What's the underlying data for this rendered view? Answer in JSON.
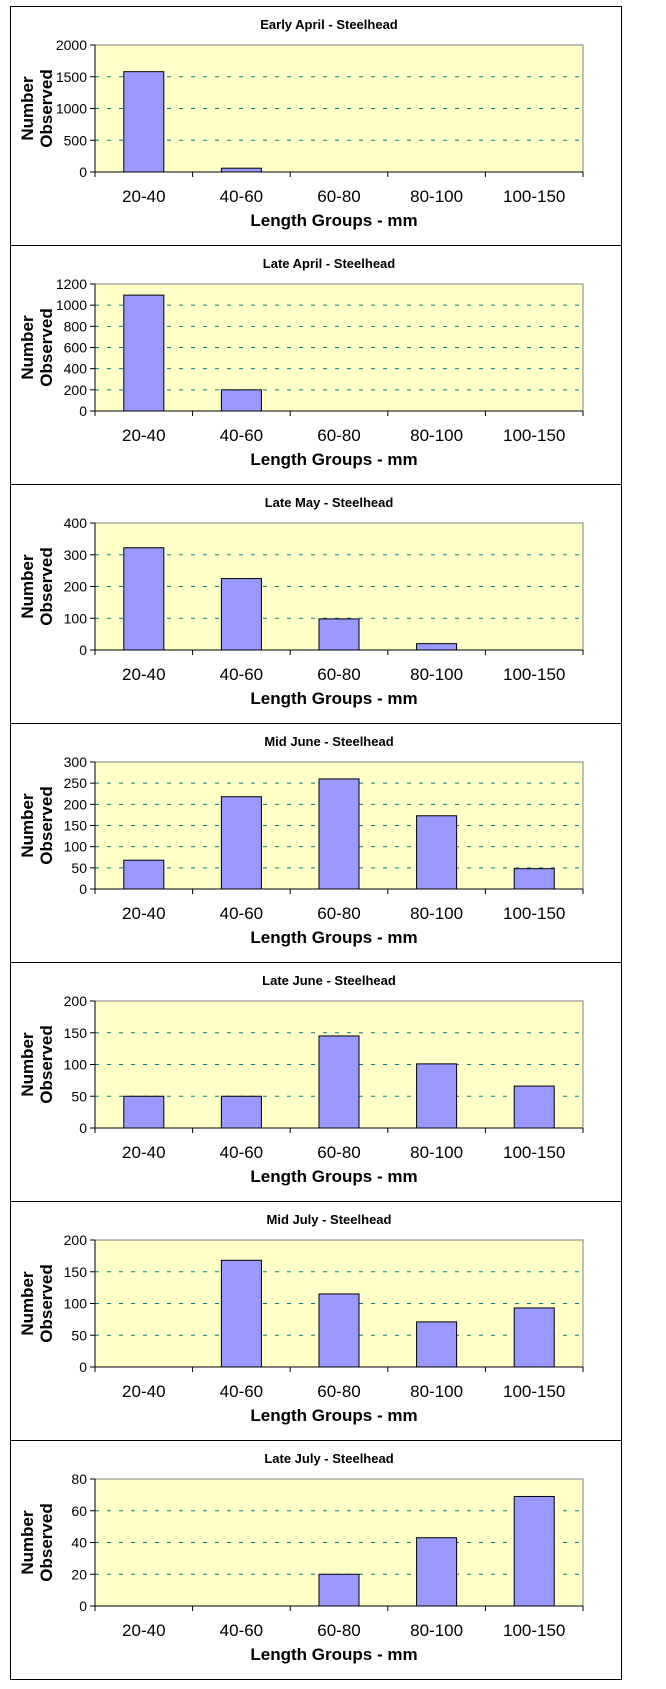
{
  "colors": {
    "plot_background": "#FFFFC8",
    "bar_fill": "#9999FF",
    "bar_stroke": "#000000",
    "grid": "#008080"
  },
  "chart_data": [
    {
      "type": "bar",
      "title": "Early April - Steelhead",
      "xlabel": "Length Groups - mm",
      "ylabel": [
        "Number",
        "Observed"
      ],
      "categories": [
        "20-40",
        "40-60",
        "60-80",
        "80-100",
        "100-150"
      ],
      "values": [
        1580,
        60,
        0,
        0,
        0
      ],
      "ylim": [
        0,
        2000
      ],
      "yticks": [
        0,
        500,
        1000,
        1500,
        2000
      ],
      "grid": "horizontal dashed"
    },
    {
      "type": "bar",
      "title": "Late April - Steelhead",
      "xlabel": "Length Groups - mm",
      "ylabel": [
        "Number",
        "Observed"
      ],
      "categories": [
        "20-40",
        "40-60",
        "60-80",
        "80-100",
        "100-150"
      ],
      "values": [
        1095,
        200,
        0,
        0,
        0
      ],
      "ylim": [
        0,
        1200
      ],
      "yticks": [
        0,
        200,
        400,
        600,
        800,
        1000,
        1200
      ],
      "grid": "horizontal dashed"
    },
    {
      "type": "bar",
      "title": "Late May - Steelhead",
      "xlabel": "Length Groups - mm",
      "ylabel": [
        "Number",
        "Observed"
      ],
      "categories": [
        "20-40",
        "40-60",
        "60-80",
        "80-100",
        "100-150"
      ],
      "values": [
        322,
        225,
        98,
        20,
        0
      ],
      "ylim": [
        0,
        400
      ],
      "yticks": [
        0,
        100,
        200,
        300,
        400
      ],
      "grid": "horizontal dashed"
    },
    {
      "type": "bar",
      "title": "Mid June - Steelhead",
      "xlabel": "Length Groups - mm",
      "ylabel": [
        "Number",
        "Observed"
      ],
      "categories": [
        "20-40",
        "40-60",
        "60-80",
        "80-100",
        "100-150"
      ],
      "values": [
        68,
        218,
        260,
        173,
        48
      ],
      "ylim": [
        0,
        300
      ],
      "yticks": [
        0,
        50,
        100,
        150,
        200,
        250,
        300
      ],
      "grid": "horizontal dashed"
    },
    {
      "type": "bar",
      "title": "Late June - Steelhead",
      "xlabel": "Length Groups - mm",
      "ylabel": [
        "Number",
        "Observed"
      ],
      "categories": [
        "20-40",
        "40-60",
        "60-80",
        "80-100",
        "100-150"
      ],
      "values": [
        50,
        50,
        145,
        101,
        66
      ],
      "ylim": [
        0,
        200
      ],
      "yticks": [
        0,
        50,
        100,
        150,
        200
      ],
      "grid": "horizontal dashed"
    },
    {
      "type": "bar",
      "title": "Mid July - Steelhead",
      "xlabel": "Length Groups - mm",
      "ylabel": [
        "Number",
        "Observed"
      ],
      "categories": [
        "20-40",
        "40-60",
        "60-80",
        "80-100",
        "100-150"
      ],
      "values": [
        0,
        168,
        115,
        71,
        93
      ],
      "ylim": [
        0,
        200
      ],
      "yticks": [
        0,
        50,
        100,
        150,
        200
      ],
      "grid": "horizontal dashed"
    },
    {
      "type": "bar",
      "title": "Late July - Steelhead",
      "xlabel": "Length Groups - mm",
      "ylabel": [
        "Number",
        "Observed"
      ],
      "categories": [
        "20-40",
        "40-60",
        "60-80",
        "80-100",
        "100-150"
      ],
      "values": [
        0,
        0,
        20,
        43,
        69
      ],
      "ylim": [
        0,
        80
      ],
      "yticks": [
        0,
        20,
        40,
        60,
        80
      ],
      "grid": "horizontal dashed"
    }
  ]
}
